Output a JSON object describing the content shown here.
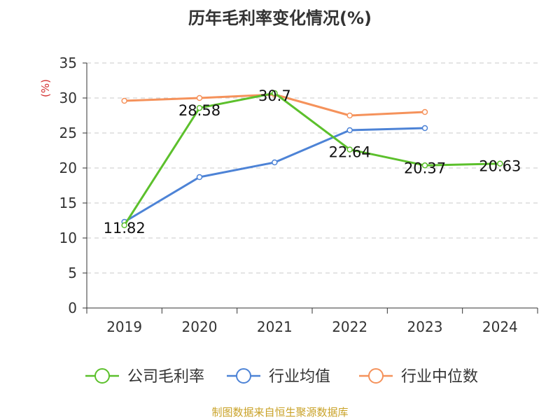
{
  "title": "历年毛利率变化情况(%)",
  "source_note": "制图数据来自恒生聚源数据库",
  "chart_data": {
    "type": "line",
    "title": "历年毛利率变化情况(%)",
    "ylabel": "(%)",
    "xlabel": "",
    "categories": [
      "2019",
      "2020",
      "2021",
      "2022",
      "2023",
      "2024"
    ],
    "ylim": [
      0,
      35
    ],
    "yticks": [
      0,
      5,
      10,
      15,
      20,
      25,
      30,
      35
    ],
    "grid": true,
    "legend": "bottom",
    "series": [
      {
        "name": "公司毛利率",
        "color": "#5cc02c",
        "values": [
          11.82,
          28.58,
          30.7,
          22.64,
          20.37,
          20.63
        ],
        "labels": [
          "11.82",
          "28.58",
          "30.7",
          "22.64",
          "20.37",
          "20.63"
        ]
      },
      {
        "name": "行业均值",
        "color": "#4d83d6",
        "values": [
          12.3,
          18.7,
          20.8,
          25.4,
          25.7,
          null
        ]
      },
      {
        "name": "行业中位数",
        "color": "#f5925b",
        "values": [
          29.6,
          30.0,
          30.5,
          27.5,
          28.0,
          null
        ]
      }
    ]
  }
}
